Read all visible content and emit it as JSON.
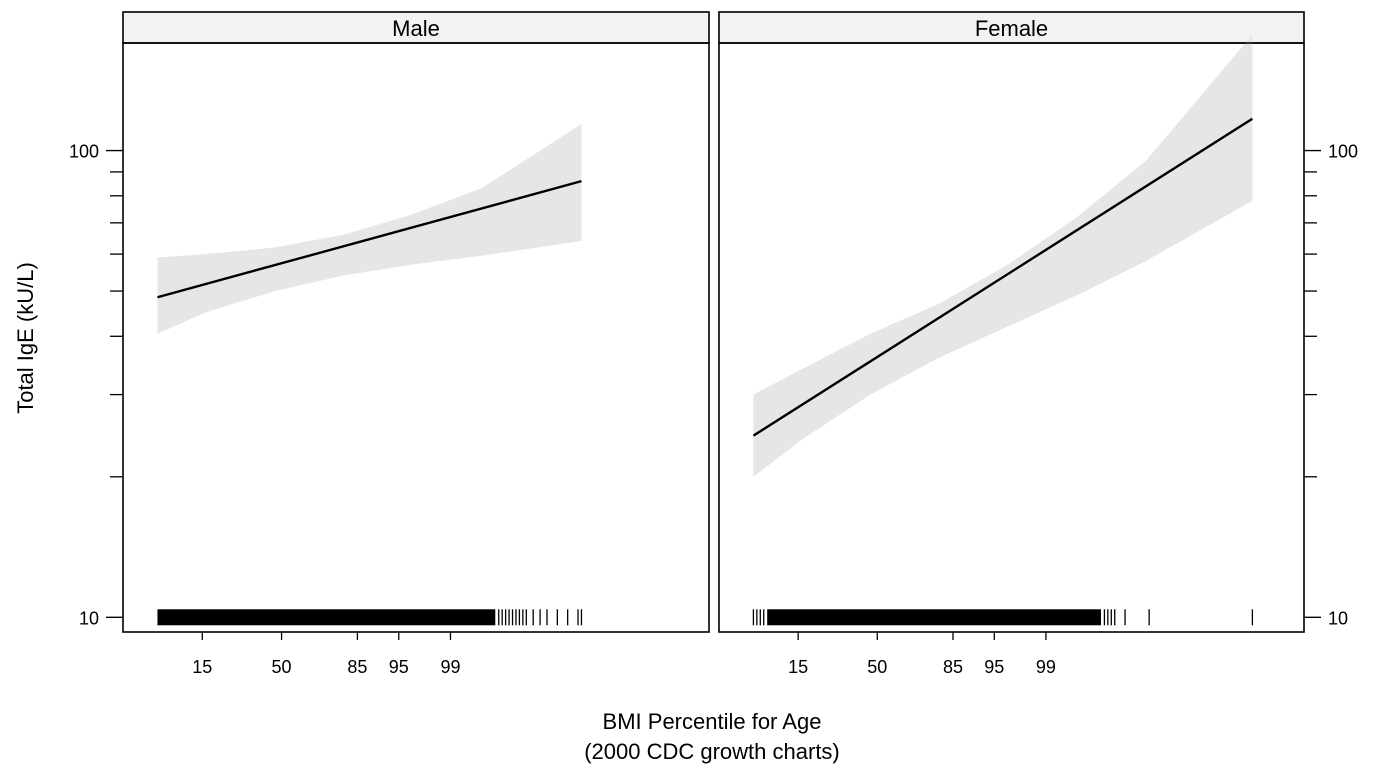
{
  "chart_data": {
    "type": "line",
    "panels": [
      {
        "name": "Male",
        "fit": {
          "x": [
            6,
            129
          ],
          "y": [
            48.5,
            86
          ]
        },
        "band": {
          "x": [
            6,
            20,
            40,
            60,
            80,
            100,
            129
          ],
          "lower": [
            40.5,
            45,
            50,
            54,
            57,
            59.5,
            64
          ],
          "upper": [
            59,
            60,
            62,
            66,
            73,
            83,
            114
          ]
        },
        "rug": {
          "dense_from": 6,
          "dense_to": 104,
          "ticks": [
            105,
            106,
            107,
            108,
            109,
            110,
            111,
            112,
            113,
            115,
            117,
            119,
            122,
            125,
            128,
            129
          ]
        }
      },
      {
        "name": "Female",
        "fit": {
          "x": [
            6,
            151
          ],
          "y": [
            24.5,
            117
          ]
        },
        "band": {
          "x": [
            6,
            20,
            40,
            60,
            80,
            100,
            120,
            151
          ],
          "lower": [
            20,
            24,
            30,
            36,
            42,
            49,
            58,
            78
          ],
          "upper": [
            30,
            34,
            40.5,
            47,
            57,
            72,
            95,
            177
          ]
        },
        "rug": {
          "dense_from": 10,
          "dense_to": 107,
          "ticks": [
            6,
            7,
            8,
            9,
            108,
            109,
            110,
            111,
            114,
            121,
            151
          ]
        }
      }
    ],
    "x_ticks": [
      {
        "pos": 19,
        "label": "15"
      },
      {
        "pos": 42,
        "label": "50"
      },
      {
        "pos": 64,
        "label": "85"
      },
      {
        "pos": 76,
        "label": "95"
      },
      {
        "pos": 91,
        "label": "99"
      }
    ],
    "x_lim": [
      -4,
      166
    ],
    "y_scale": "log10",
    "y_lim": [
      9.3,
      170
    ],
    "y_major": [
      {
        "value": 10,
        "label": "10"
      },
      {
        "value": 100,
        "label": "100"
      }
    ],
    "y_minor": [
      20,
      30,
      40,
      50,
      60,
      70,
      80,
      90
    ],
    "xlabel_line1": "BMI Percentile for Age",
    "xlabel_line2": "(2000 CDC growth charts)",
    "ylabel": "Total IgE (kU/L)"
  }
}
